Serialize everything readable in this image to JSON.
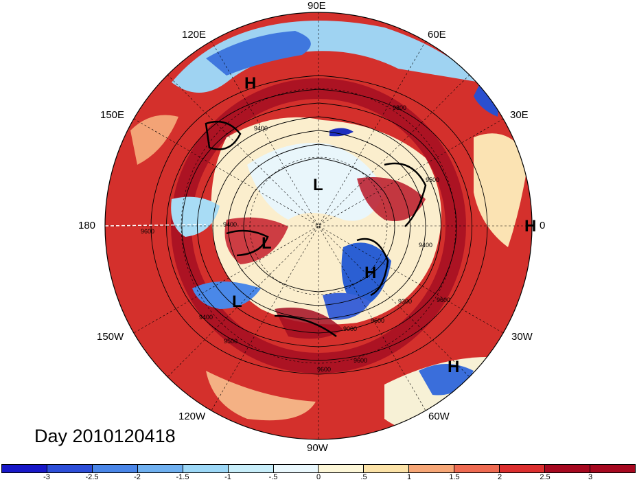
{
  "title": "Day 2010120418",
  "longitude_labels": {
    "e90": "90E",
    "e60": "60E",
    "e120": "120E",
    "e150": "150E",
    "e30": "30E",
    "lon180": "180",
    "lon0": "0",
    "w150": "150W",
    "w30": "30W",
    "w120": "120W",
    "w60": "60W",
    "w90": "90W"
  },
  "pressure_centers": [
    {
      "label": "H"
    },
    {
      "label": "L"
    },
    {
      "label": "L"
    },
    {
      "label": "H"
    },
    {
      "label": "L"
    },
    {
      "label": "H"
    },
    {
      "label": "H"
    }
  ],
  "contour_labels": [
    "9800",
    "9500",
    "9400",
    "9400",
    "9400",
    "9300",
    "9000",
    "9500",
    "9600",
    "9600",
    "9600",
    "9600",
    "9400",
    "9600"
  ],
  "colorbar": {
    "ticks": [
      "-3",
      "-2.5",
      "-2",
      "-1.5",
      "-1",
      "-.5",
      "0",
      ".5",
      "1",
      "1.5",
      "2",
      "2.5",
      "3"
    ],
    "colors": [
      "#1818c8",
      "#2d4ed8",
      "#4a86e8",
      "#6fb0f0",
      "#9dd8f7",
      "#c8eefa",
      "#eaf8fd",
      "#fdf7d8",
      "#fce3a8",
      "#f7a777",
      "#ef6b52",
      "#dc2f2f",
      "#a6081f"
    ]
  }
}
